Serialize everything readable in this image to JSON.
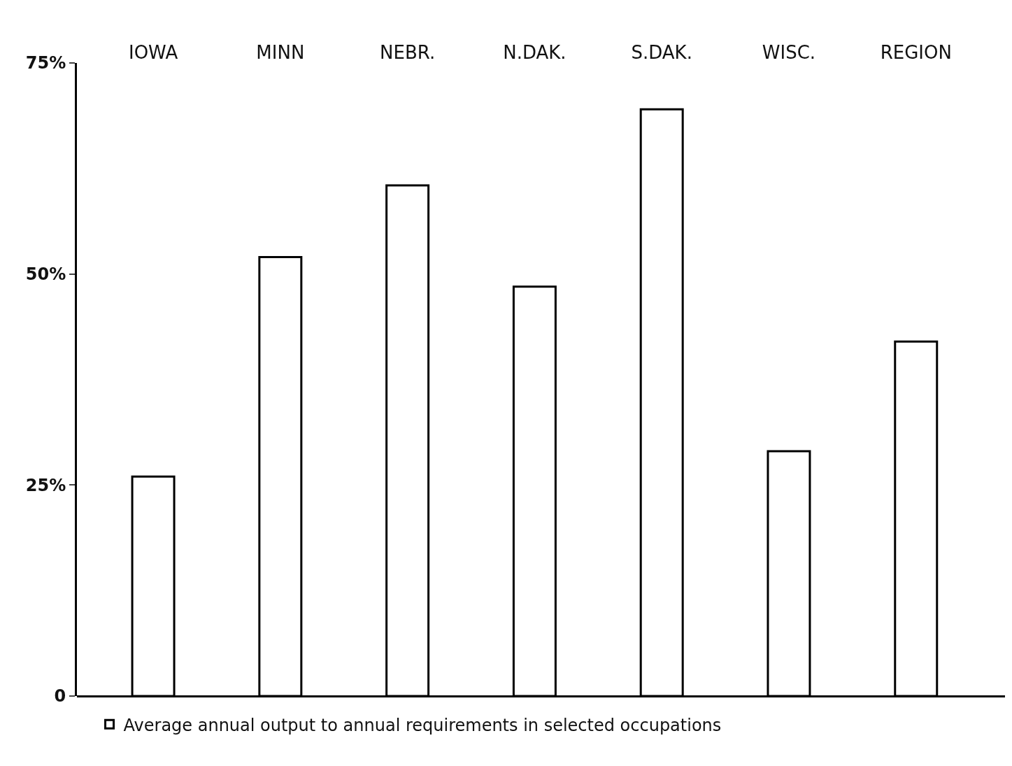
{
  "chart_data": {
    "type": "bar",
    "categories": [
      "IOWA",
      "MINN",
      "NEBR.",
      "N.DAK.",
      "S.DAK.",
      "WISC.",
      "REGION"
    ],
    "series": [
      {
        "name": "Average annual output to annual requirements in selected occupations",
        "color": "#ffffff",
        "values": [
          26,
          52,
          60.5,
          48.5,
          69.5,
          29,
          42
        ]
      }
    ],
    "ylim": [
      0,
      75
    ],
    "yticks": [
      0,
      {
        "value": 25,
        "label": "25%"
      },
      {
        "value": 50,
        "label": "50%"
      },
      {
        "value": 75,
        "label": "75%"
      }
    ],
    "grid": false,
    "legend": "bottom"
  }
}
